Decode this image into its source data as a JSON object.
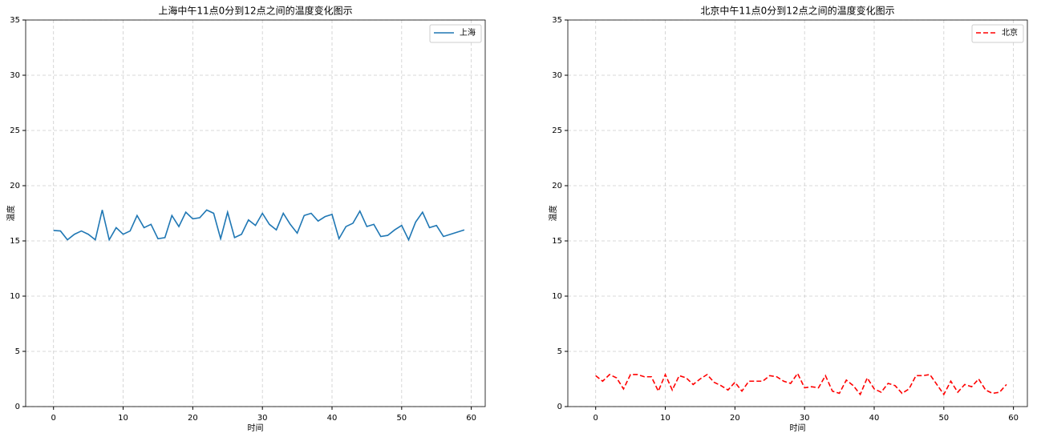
{
  "chart_data": [
    {
      "type": "line",
      "title": "上海中午11点0分到12点之间的温度变化图示",
      "x_label": "时间",
      "y_label": "温度",
      "x": [
        0,
        1,
        2,
        3,
        4,
        5,
        6,
        7,
        8,
        9,
        10,
        11,
        12,
        13,
        14,
        15,
        16,
        17,
        18,
        19,
        20,
        21,
        22,
        23,
        24,
        25,
        26,
        27,
        28,
        29,
        30,
        31,
        32,
        33,
        34,
        35,
        36,
        37,
        38,
        39,
        40,
        41,
        42,
        43,
        44,
        45,
        46,
        47,
        48,
        49,
        50,
        51,
        52,
        53,
        54,
        55,
        56,
        57,
        58,
        59
      ],
      "series": [
        {
          "name": "上海",
          "color": "#1f77b4",
          "linestyle": "solid",
          "values": [
            15.95,
            15.9,
            15.1,
            15.6,
            15.9,
            15.6,
            15.1,
            17.8,
            15.1,
            16.2,
            15.6,
            15.9,
            17.3,
            16.2,
            16.5,
            15.2,
            15.3,
            17.3,
            16.3,
            17.6,
            17.0,
            17.1,
            17.8,
            17.5,
            15.2,
            17.6,
            15.3,
            15.6,
            16.9,
            16.4,
            17.5,
            16.5,
            16.0,
            17.5,
            16.5,
            15.7,
            17.3,
            17.5,
            16.8,
            17.2,
            17.4,
            15.2,
            16.3,
            16.6,
            17.7,
            16.3,
            16.5,
            15.4,
            15.5,
            16.0,
            16.4,
            15.1,
            16.7,
            17.6,
            16.2,
            16.4,
            15.4,
            15.6,
            15.8,
            16.0
          ]
        }
      ],
      "xlim": [
        -4,
        62
      ],
      "xticks": [
        0,
        10,
        20,
        30,
        40,
        50,
        60
      ],
      "ylim": [
        0,
        35
      ],
      "yticks": [
        0,
        5,
        10,
        15,
        20,
        25,
        30,
        35
      ],
      "grid": true,
      "legend": "upper right"
    },
    {
      "type": "line",
      "title": "北京中午11点0分到12点之间的温度变化图示",
      "x_label": "时间",
      "y_label": "温度",
      "x": [
        0,
        1,
        2,
        3,
        4,
        5,
        6,
        7,
        8,
        9,
        10,
        11,
        12,
        13,
        14,
        15,
        16,
        17,
        18,
        19,
        20,
        21,
        22,
        23,
        24,
        25,
        26,
        27,
        28,
        29,
        30,
        31,
        32,
        33,
        34,
        35,
        36,
        37,
        38,
        39,
        40,
        41,
        42,
        43,
        44,
        45,
        46,
        47,
        48,
        49,
        50,
        51,
        52,
        53,
        54,
        55,
        56,
        57,
        58,
        59
      ],
      "series": [
        {
          "name": "北京",
          "color": "#ff0000",
          "linestyle": "dashed",
          "values": [
            2.8,
            2.3,
            2.9,
            2.6,
            1.6,
            2.9,
            2.9,
            2.7,
            2.7,
            1.4,
            2.9,
            1.5,
            2.8,
            2.6,
            2.0,
            2.5,
            2.9,
            2.2,
            1.9,
            1.5,
            2.2,
            1.4,
            2.3,
            2.3,
            2.3,
            2.8,
            2.7,
            2.3,
            2.1,
            3.0,
            1.7,
            1.8,
            1.7,
            2.8,
            1.4,
            1.2,
            2.4,
            1.9,
            1.1,
            2.6,
            1.6,
            1.3,
            2.1,
            1.9,
            1.2,
            1.6,
            2.8,
            2.8,
            2.9,
            2.0,
            1.1,
            2.3,
            1.3,
            2.0,
            1.8,
            2.5,
            1.5,
            1.2,
            1.3,
            2.0
          ]
        }
      ],
      "xlim": [
        -4,
        62
      ],
      "xticks": [
        0,
        10,
        20,
        30,
        40,
        50,
        60
      ],
      "ylim": [
        0,
        35
      ],
      "yticks": [
        0,
        5,
        10,
        15,
        20,
        25,
        30,
        35
      ],
      "grid": true,
      "legend": "upper right"
    }
  ]
}
